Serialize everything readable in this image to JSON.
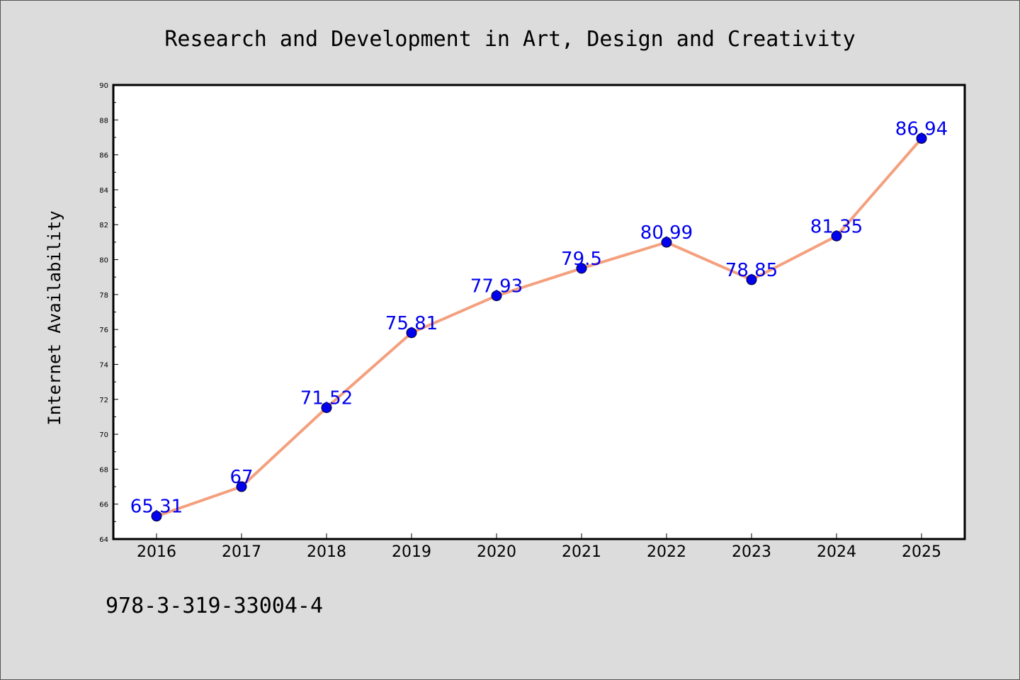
{
  "chart_data": {
    "type": "line",
    "title": "Research and Development in Art, Design and Creativity",
    "xlabel": "",
    "ylabel": "Internet Availability",
    "categories": [
      "2016",
      "2017",
      "2018",
      "2019",
      "2020",
      "2021",
      "2022",
      "2023",
      "2024",
      "2025"
    ],
    "series": [
      {
        "values": [
          65.31,
          67,
          71.52,
          75.81,
          77.93,
          79.5,
          80.99,
          78.85,
          81.35,
          86.94
        ],
        "labels": [
          "65.31",
          "67",
          "71.52",
          "75.81",
          "77.93",
          "79.5",
          "80.99",
          "78.85",
          "81.35",
          "86.94"
        ],
        "line_color": "#f4a07e",
        "marker_color": "#0000ee"
      }
    ],
    "ylim": [
      64,
      90
    ],
    "yticks": [
      "64",
      "66",
      "68",
      "70",
      "72",
      "74",
      "76",
      "78",
      "80",
      "82",
      "84",
      "86",
      "88",
      "90"
    ],
    "grid": false,
    "data_label_color": "#0000ee"
  },
  "footer": {
    "text": "978-3-319-33004-4"
  },
  "colors": {
    "background": "#dcdcdc",
    "plot_background": "#ffffff",
    "axis": "#000000"
  }
}
